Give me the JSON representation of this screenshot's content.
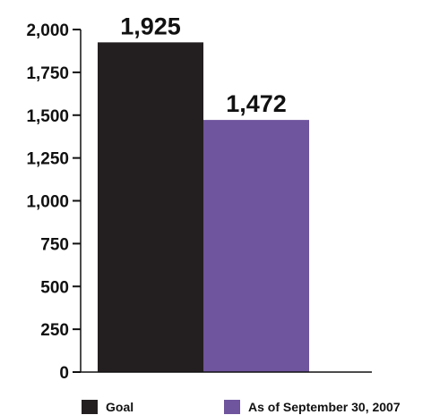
{
  "chart_data": {
    "type": "bar",
    "categories": [
      "Goal",
      "As of September 30, 2007"
    ],
    "values": [
      1925,
      1472
    ],
    "data_labels": [
      "1,925",
      "1,472"
    ],
    "colors": [
      "#231f20",
      "#6f549e"
    ],
    "ylim": [
      0,
      2000
    ],
    "yticks": [
      0,
      250,
      500,
      750,
      1000,
      1250,
      1500,
      1750,
      2000
    ],
    "ytick_labels": [
      "0",
      "250",
      "500",
      "750",
      "1,000",
      "1,250",
      "1,500",
      "1,750",
      "2,000"
    ],
    "legend": [
      {
        "label": "Goal",
        "color": "#231f20"
      },
      {
        "label": "As of September 30, 2007",
        "color": "#6f549e"
      }
    ],
    "legend_position": "bottom",
    "grid": false,
    "title": "",
    "xlabel": "",
    "ylabel": ""
  }
}
